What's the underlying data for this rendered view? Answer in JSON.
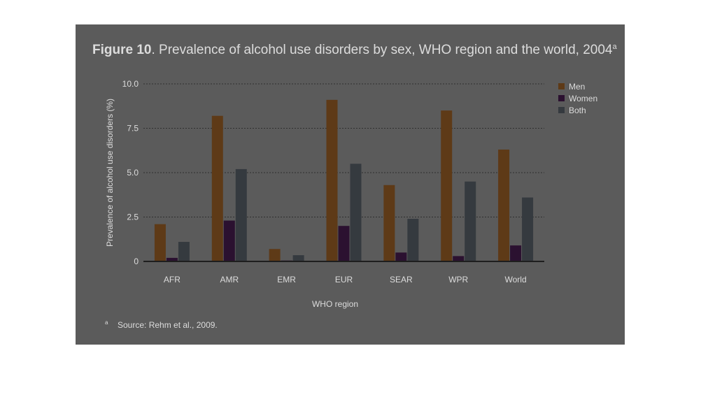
{
  "figure": {
    "label": "Figure 10",
    "caption": ". Prevalence of alcohol use disorders by sex, WHO region and the world, 2004",
    "superscript": "a"
  },
  "footnote": {
    "marker": "a",
    "text": "Source: Rehm et al., 2009."
  },
  "colors": {
    "panel_bg": "#5b5b5b",
    "men": "#5e3a17",
    "women": "#2b1130",
    "both": "#353a3f",
    "text": "#dcdcdc",
    "grid": "#2f2f2f"
  },
  "chart_data": {
    "type": "bar",
    "xlabel": "WHO region",
    "ylabel": "Prevalence of alcohol use disorders (%)",
    "ylim": [
      0,
      10
    ],
    "yticks": [
      "0",
      "2.5",
      "5.0",
      "7.5",
      "10.0"
    ],
    "grid": true,
    "legend_position": "top-right",
    "categories": [
      "AFR",
      "AMR",
      "EMR",
      "EUR",
      "SEAR",
      "WPR",
      "World"
    ],
    "series": [
      {
        "name": "Men",
        "color": "#5e3a17",
        "values": [
          2.1,
          8.2,
          0.7,
          9.1,
          4.3,
          8.5,
          6.3
        ]
      },
      {
        "name": "Women",
        "color": "#2b1130",
        "values": [
          0.2,
          2.3,
          0.05,
          2.0,
          0.5,
          0.3,
          0.9
        ]
      },
      {
        "name": "Both",
        "color": "#353a3f",
        "values": [
          1.1,
          5.2,
          0.35,
          5.5,
          2.4,
          4.5,
          3.6
        ]
      }
    ]
  }
}
